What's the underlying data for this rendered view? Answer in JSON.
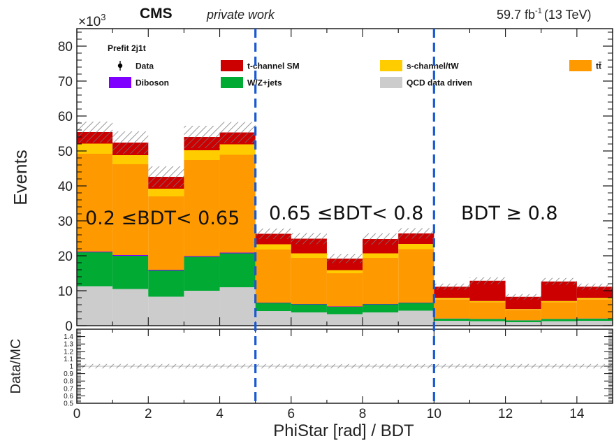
{
  "header": {
    "experiment": "CMS",
    "subtitle": "private work",
    "lumi": "59.7 fb",
    "lumi_sup": "-1",
    "energy": "(13 TeV)",
    "exponent_base": "×10",
    "exponent_power": "3"
  },
  "legend": {
    "title": "Prefit  2j1t",
    "entries": [
      {
        "label": "Data",
        "color": "#000000",
        "kind": "marker"
      },
      {
        "label": "t-channel SM",
        "color": "#cc0000",
        "kind": "box"
      },
      {
        "label": "s-channel/tW",
        "color": "#ffcc00",
        "kind": "box"
      },
      {
        "label": "tt̄",
        "color": "#ff9900",
        "kind": "box"
      },
      {
        "label": "Diboson",
        "color": "#7f00ff",
        "kind": "box"
      },
      {
        "label": "W/Z+jets",
        "color": "#00aa33",
        "kind": "box"
      },
      {
        "label": "QCD data driven",
        "color": "#cccccc",
        "kind": "box"
      }
    ]
  },
  "regions": [
    {
      "label": "0.2 ≤BDT< 0.65"
    },
    {
      "label": "0.65 ≤BDT< 0.8"
    },
    {
      "label": "BDT ≥ 0.8"
    }
  ],
  "chart_data": [
    {
      "type": "bar",
      "stacked": true,
      "xlabel": "PhiStar [rad] / BDT",
      "ylabel": "Events",
      "y_scale_note": "×10^3",
      "xlim": [
        0,
        15
      ],
      "ylim": [
        0,
        85
      ],
      "xticks": [
        "0",
        "2",
        "4",
        "6",
        "8",
        "10",
        "12",
        "14"
      ],
      "yticks": [
        "0",
        "10",
        "20",
        "30",
        "40",
        "50",
        "60",
        "70",
        "80"
      ],
      "bin_edges": [
        0,
        1,
        2,
        3,
        4,
        5,
        6,
        7,
        8,
        9,
        10,
        11,
        12,
        13,
        14,
        15
      ],
      "region_boundaries": [
        5,
        10
      ],
      "series": [
        {
          "name": "QCD data driven",
          "color": "#cccccc",
          "values": [
            11.3,
            10.5,
            8.3,
            10,
            11,
            4.2,
            3.8,
            3.3,
            3.8,
            4.3,
            1.4,
            1.3,
            1,
            1.3,
            1.4
          ]
        },
        {
          "name": "W/Z+jets",
          "color": "#00aa33",
          "values": [
            9.7,
            9.5,
            7.5,
            9.7,
            9.7,
            2.3,
            2.3,
            2.1,
            2.3,
            2.2,
            0.6,
            0.6,
            0.5,
            0.6,
            0.6
          ]
        },
        {
          "name": "Diboson",
          "color": "#7f00ff",
          "values": [
            0.2,
            0.2,
            0.2,
            0.2,
            0.2,
            0.1,
            0.1,
            0.1,
            0.1,
            0.1,
            0.05,
            0.05,
            0.05,
            0.05,
            0.05
          ]
        },
        {
          "name": "tt̄",
          "color": "#ff9900",
          "values": [
            28,
            26,
            21,
            27.5,
            28,
            15.2,
            13.2,
            9.5,
            13.2,
            15.3,
            5.5,
            4.8,
            3,
            4.8,
            5.5
          ]
        },
        {
          "name": "s-channel/tW",
          "color": "#ffcc00",
          "values": [
            2.9,
            2.6,
            2.2,
            2.8,
            3,
            1.5,
            1.3,
            0.9,
            1.3,
            1.5,
            0.4,
            0.3,
            0.2,
            0.3,
            0.4
          ]
        },
        {
          "name": "t-channel SM",
          "color": "#cc0000",
          "values": [
            3.3,
            3.6,
            3.4,
            3.8,
            3.4,
            3,
            4.2,
            3.3,
            4.1,
            3,
            3.2,
            5.8,
            3.5,
            5.6,
            3.2
          ]
        }
      ],
      "uncertainty": [
        3,
        3.2,
        3,
        3.2,
        3,
        1.5,
        1.6,
        1.3,
        1.6,
        1.5,
        0.9,
        1,
        0.8,
        1,
        0.9
      ]
    },
    {
      "type": "line",
      "ylabel": "Data/MC",
      "xlim": [
        0,
        15
      ],
      "ylim": [
        0.5,
        1.5
      ],
      "yticks": [
        "0.5",
        "0.6",
        "0.7",
        "0.8",
        "0.9",
        "1",
        "1.1",
        "1.2",
        "1.3",
        "1.4"
      ],
      "uncertainty_band": [
        0.97,
        1.03
      ]
    }
  ]
}
